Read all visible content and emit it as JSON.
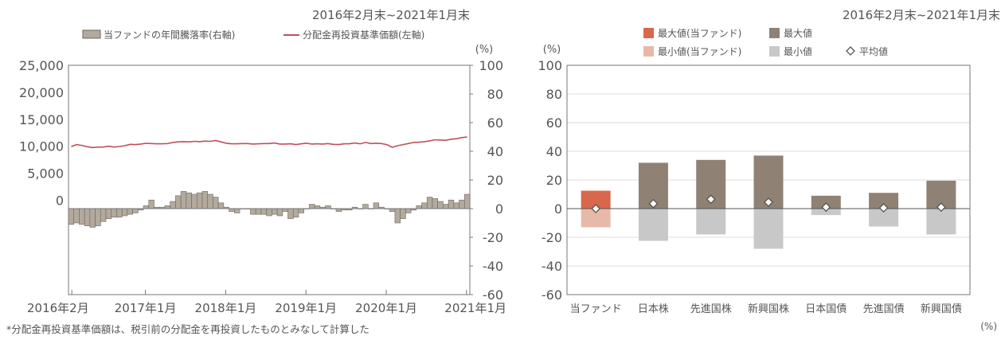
{
  "colors": {
    "return_bar": "#b3aa9e",
    "return_bar_stroke": "#6e665c",
    "nav_line": "#c0505a",
    "fund_max": "#d9674b",
    "fund_min": "#e7b9a9",
    "max": "#8f8274",
    "min": "#c9c8c8",
    "axis": "#777777",
    "grid": "#dddddd",
    "text": "#555555"
  },
  "chart_data": [
    {
      "type": "bar-line",
      "period": "2016年2月末~2021年1月末",
      "legend": {
        "bar": "当ファンドの年間騰落率(右軸)",
        "line": "分配金再投資基準価額(左軸)"
      },
      "right_axis_unit": "(%)",
      "left_axis": {
        "ylim": [
          -17500,
          25000
        ],
        "ticks": [
          "25,000",
          "20,000",
          "15,000",
          "10,000",
          "5,000",
          "0"
        ],
        "tick_values": [
          25000,
          20000,
          15000,
          10000,
          5000,
          0
        ]
      },
      "right_axis": {
        "ylim": [
          -60,
          100
        ],
        "ticks": [
          "100",
          "80",
          "60",
          "40",
          "20",
          "0",
          "-20",
          "-40",
          "-60"
        ],
        "tick_values": [
          100,
          80,
          60,
          40,
          20,
          0,
          -20,
          -40,
          -60
        ]
      },
      "x_tick_labels": [
        "2016年2月",
        "2017年1月",
        "2018年1月",
        "2019年1月",
        "2020年1月",
        "2021年1月"
      ],
      "x_tick_index": [
        0,
        11,
        23,
        35,
        47,
        59
      ],
      "series": [
        {
          "name": "当ファンドの年間騰落率(右軸)",
          "axis": "right",
          "values": [
            -11,
            -10,
            -11,
            -12,
            -13,
            -12,
            -9,
            -7,
            -6,
            -6,
            -5,
            -4,
            -3,
            -1,
            2,
            6,
            1,
            1,
            2,
            5,
            9,
            12,
            11,
            10,
            11,
            12,
            10,
            8,
            4,
            1,
            -2,
            -3,
            0,
            0,
            -4,
            -4,
            -4,
            -5,
            -4,
            -5,
            -2,
            -7,
            -6,
            -3,
            0,
            3,
            2,
            1,
            2,
            0,
            -2,
            -1,
            -1,
            1,
            0,
            3,
            0,
            4,
            1,
            0,
            -2,
            -10,
            -7,
            -3,
            -1,
            2,
            4,
            8,
            7,
            5,
            3,
            6,
            4,
            6,
            10
          ]
        },
        {
          "name": "分配金再投資基準価額(左軸)",
          "axis": "left",
          "values": [
            9900,
            10300,
            10150,
            9900,
            9750,
            9850,
            9850,
            10000,
            9850,
            9950,
            10100,
            10350,
            10300,
            10400,
            10550,
            10500,
            10450,
            10450,
            10500,
            10700,
            10800,
            10850,
            10800,
            10900,
            10850,
            10950,
            10900,
            11050,
            10800,
            10550,
            10450,
            10450,
            10500,
            10500,
            10400,
            10450,
            10500,
            10500,
            10600,
            10400,
            10400,
            10450,
            10300,
            10450,
            10550,
            10400,
            10450,
            10400,
            10500,
            10350,
            10300,
            10450,
            10450,
            10600,
            10450,
            10700,
            10500,
            10550,
            10500,
            10300,
            9800,
            10100,
            10300,
            10500,
            10700,
            10750,
            10850,
            11000,
            11200,
            11150,
            11100,
            11300,
            11400,
            11600,
            11700
          ]
        }
      ],
      "footnote": "*分配金再投資基準価額は、税引前の分配金を再投資したものとみなして計算した"
    },
    {
      "type": "bar",
      "period": "2016年2月末~2021年1月末",
      "legend": {
        "fund_max": "最大値(当ファンド)",
        "max": "最大値",
        "fund_min": "最小値(当ファンド)",
        "min": "最小値",
        "avg": "平均値"
      },
      "y_unit": "(%)",
      "x_unit": "(%)",
      "ylim": [
        -60,
        100
      ],
      "y_ticks": [
        "100",
        "80",
        "60",
        "40",
        "20",
        "0",
        "-20",
        "-40",
        "-60"
      ],
      "y_tick_values": [
        100,
        80,
        60,
        40,
        20,
        0,
        -20,
        -40,
        -60
      ],
      "categories": [
        "当ファンド",
        "日本株",
        "先進国株",
        "新興国株",
        "日本国債",
        "先進国債",
        "新興国債"
      ],
      "max": [
        12.5,
        32.0,
        34.0,
        37.0,
        9.0,
        11.0,
        19.5
      ],
      "min": [
        -13.0,
        -22.5,
        -18.0,
        -28.0,
        -4.5,
        -12.5,
        -18.0
      ],
      "avg": [
        0.0,
        3.5,
        6.5,
        4.5,
        1.0,
        0.5,
        1.0
      ]
    }
  ]
}
